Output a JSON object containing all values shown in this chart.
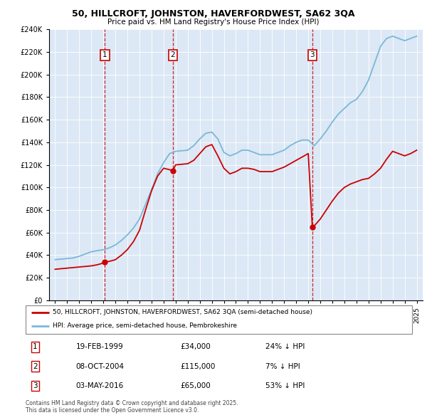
{
  "title": "50, HILLCROFT, JOHNSTON, HAVERFORDWEST, SA62 3QA",
  "subtitle": "Price paid vs. HM Land Registry's House Price Index (HPI)",
  "ylim": [
    0,
    240000
  ],
  "yticks": [
    0,
    20000,
    40000,
    60000,
    80000,
    100000,
    120000,
    140000,
    160000,
    180000,
    200000,
    220000,
    240000
  ],
  "xlim_left": 1994.5,
  "xlim_right": 2025.5,
  "plot_bg": "#dce8f5",
  "hpi_color": "#7ab8d9",
  "price_color": "#cc0000",
  "dashed_color": "#cc0000",
  "sale_dates_decimal": [
    1999.13,
    2004.77,
    2016.34
  ],
  "sale_prices": [
    34000,
    115000,
    65000
  ],
  "sale_labels": [
    "1",
    "2",
    "3"
  ],
  "legend_price_label": "50, HILLCROFT, JOHNSTON, HAVERFORDWEST, SA62 3QA (semi-detached house)",
  "legend_hpi_label": "HPI: Average price, semi-detached house, Pembrokeshire",
  "table_data": [
    [
      "1",
      "19-FEB-1999",
      "£34,000",
      "24% ↓ HPI"
    ],
    [
      "2",
      "08-OCT-2004",
      "£115,000",
      "7% ↓ HPI"
    ],
    [
      "3",
      "03-MAY-2016",
      "£65,000",
      "53% ↓ HPI"
    ]
  ],
  "footnote": "Contains HM Land Registry data © Crown copyright and database right 2025.\nThis data is licensed under the Open Government Licence v3.0.",
  "hpi_data": [
    [
      1995.0,
      36000
    ],
    [
      1995.5,
      36500
    ],
    [
      1996.0,
      37000
    ],
    [
      1996.5,
      37500
    ],
    [
      1997.0,
      39000
    ],
    [
      1997.5,
      41000
    ],
    [
      1998.0,
      43000
    ],
    [
      1998.5,
      44000
    ],
    [
      1999.0,
      44800
    ],
    [
      1999.5,
      46500
    ],
    [
      2000.0,
      49000
    ],
    [
      2000.5,
      53000
    ],
    [
      2001.0,
      58000
    ],
    [
      2001.5,
      64000
    ],
    [
      2002.0,
      72000
    ],
    [
      2002.5,
      85000
    ],
    [
      2003.0,
      98000
    ],
    [
      2003.5,
      112000
    ],
    [
      2004.0,
      122000
    ],
    [
      2004.5,
      130000
    ],
    [
      2005.0,
      132000
    ],
    [
      2005.5,
      132500
    ],
    [
      2006.0,
      133000
    ],
    [
      2006.5,
      137000
    ],
    [
      2007.0,
      143000
    ],
    [
      2007.5,
      148000
    ],
    [
      2008.0,
      149000
    ],
    [
      2008.5,
      143000
    ],
    [
      2009.0,
      131000
    ],
    [
      2009.5,
      128000
    ],
    [
      2010.0,
      130000
    ],
    [
      2010.5,
      133000
    ],
    [
      2011.0,
      133000
    ],
    [
      2011.5,
      131000
    ],
    [
      2012.0,
      129000
    ],
    [
      2012.5,
      129000
    ],
    [
      2013.0,
      129000
    ],
    [
      2013.5,
      131000
    ],
    [
      2014.0,
      133000
    ],
    [
      2014.5,
      137000
    ],
    [
      2015.0,
      140000
    ],
    [
      2015.5,
      142000
    ],
    [
      2016.0,
      142000
    ],
    [
      2016.5,
      137000
    ],
    [
      2017.0,
      143000
    ],
    [
      2017.5,
      150000
    ],
    [
      2018.0,
      158000
    ],
    [
      2018.5,
      165000
    ],
    [
      2019.0,
      170000
    ],
    [
      2019.5,
      175000
    ],
    [
      2020.0,
      178000
    ],
    [
      2020.5,
      185000
    ],
    [
      2021.0,
      195000
    ],
    [
      2021.5,
      210000
    ],
    [
      2022.0,
      225000
    ],
    [
      2022.5,
      232000
    ],
    [
      2023.0,
      234000
    ],
    [
      2023.5,
      232000
    ],
    [
      2024.0,
      230000
    ],
    [
      2024.5,
      232000
    ],
    [
      2025.0,
      234000
    ]
  ],
  "price_data": [
    [
      1995.0,
      27500
    ],
    [
      1995.5,
      28000
    ],
    [
      1996.0,
      28500
    ],
    [
      1996.5,
      29000
    ],
    [
      1997.0,
      29500
    ],
    [
      1997.5,
      30000
    ],
    [
      1998.0,
      30500
    ],
    [
      1998.5,
      31500
    ],
    [
      1999.0,
      33000
    ],
    [
      1999.13,
      34000
    ],
    [
      1999.5,
      34500
    ],
    [
      2000.0,
      36000
    ],
    [
      2000.5,
      40000
    ],
    [
      2001.0,
      45000
    ],
    [
      2001.5,
      52000
    ],
    [
      2002.0,
      62000
    ],
    [
      2002.5,
      80000
    ],
    [
      2003.0,
      97000
    ],
    [
      2003.5,
      110000
    ],
    [
      2004.0,
      117000
    ],
    [
      2004.77,
      115000
    ],
    [
      2005.0,
      120000
    ],
    [
      2005.5,
      120500
    ],
    [
      2006.0,
      121000
    ],
    [
      2006.5,
      124000
    ],
    [
      2007.0,
      130000
    ],
    [
      2007.5,
      136000
    ],
    [
      2008.0,
      138000
    ],
    [
      2008.5,
      128000
    ],
    [
      2009.0,
      117000
    ],
    [
      2009.5,
      112000
    ],
    [
      2010.0,
      114000
    ],
    [
      2010.5,
      117000
    ],
    [
      2011.0,
      117000
    ],
    [
      2011.5,
      116000
    ],
    [
      2012.0,
      114000
    ],
    [
      2012.5,
      114000
    ],
    [
      2013.0,
      114000
    ],
    [
      2013.5,
      116000
    ],
    [
      2014.0,
      118000
    ],
    [
      2014.5,
      121000
    ],
    [
      2015.0,
      124000
    ],
    [
      2015.5,
      127000
    ],
    [
      2016.0,
      130000
    ],
    [
      2016.34,
      65000
    ],
    [
      2016.5,
      66000
    ],
    [
      2017.0,
      72000
    ],
    [
      2017.5,
      80000
    ],
    [
      2018.0,
      88000
    ],
    [
      2018.5,
      95000
    ],
    [
      2019.0,
      100000
    ],
    [
      2019.5,
      103000
    ],
    [
      2020.0,
      105000
    ],
    [
      2020.5,
      107000
    ],
    [
      2021.0,
      108000
    ],
    [
      2021.5,
      112000
    ],
    [
      2022.0,
      117000
    ],
    [
      2022.5,
      125000
    ],
    [
      2023.0,
      132000
    ],
    [
      2023.5,
      130000
    ],
    [
      2024.0,
      128000
    ],
    [
      2024.5,
      130000
    ],
    [
      2025.0,
      133000
    ]
  ]
}
